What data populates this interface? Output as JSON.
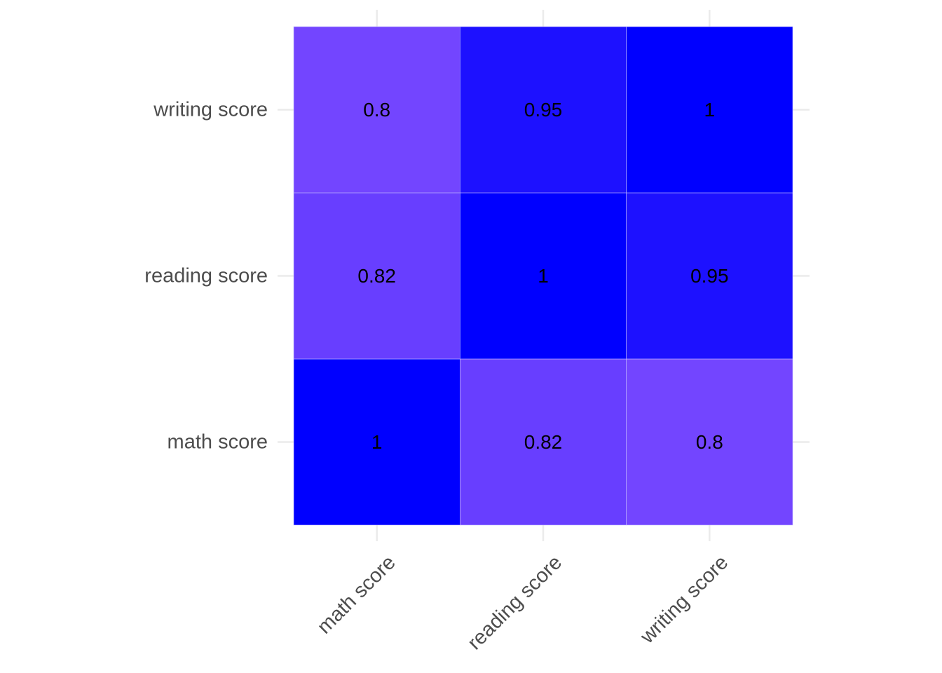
{
  "chart_data": {
    "type": "heatmap",
    "x_categories": [
      "math score",
      "reading score",
      "writing score"
    ],
    "y_categories": [
      "math score",
      "reading score",
      "writing score"
    ],
    "values": [
      [
        1,
        0.82,
        0.8
      ],
      [
        0.82,
        1,
        0.95
      ],
      [
        0.8,
        0.95,
        1
      ]
    ],
    "labels": [
      [
        "1",
        "0.82",
        "0.8"
      ],
      [
        "0.82",
        "1",
        "0.95"
      ],
      [
        "0.8",
        "0.95",
        "1"
      ]
    ],
    "title": "",
    "xlabel": "",
    "ylabel": "",
    "grid": true,
    "legend": "none",
    "colors": {
      "high": "#0000ff",
      "low": "#7345ff",
      "cell_text": "#000000",
      "tick_text": "#4d4d4d",
      "grid": "#ebebeb"
    }
  }
}
